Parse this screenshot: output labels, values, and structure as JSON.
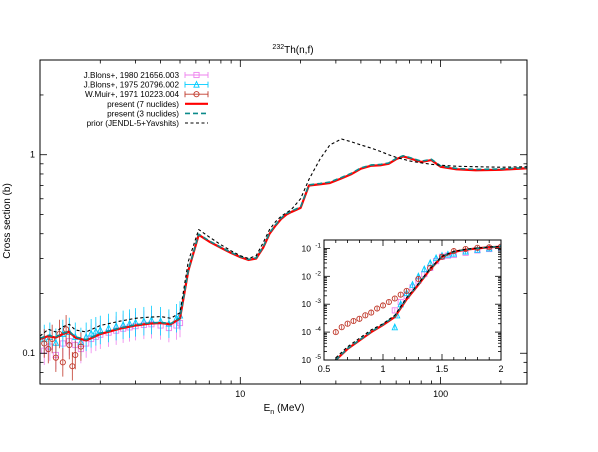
{
  "chart_data": {
    "type": "line",
    "title": "Th(n,f)",
    "title_superscript": "232",
    "xlabel": "E",
    "xlabel_subscript": "n",
    "xlabel_unit": "(MeV)",
    "ylabel": "Cross section (b)",
    "x_scale": "log",
    "y_scale": "log",
    "xlim": [
      1.0,
      270
    ],
    "ylim": [
      0.07,
      3.0
    ],
    "x_ticks": [
      {
        "value": 10,
        "label": "10"
      },
      {
        "value": 100,
        "label": "100"
      }
    ],
    "y_ticks": [
      {
        "value": 0.1,
        "label": "0.1"
      },
      {
        "value": 1,
        "label": "1"
      }
    ],
    "grid": false,
    "legend_position": "top-left",
    "series": [
      {
        "name": "J.Blons+, 1980 21656.003",
        "kind": "points",
        "marker": "square",
        "color": "#ee82ee",
        "x": [
          1.05,
          1.12,
          1.2,
          1.3,
          1.4,
          1.5,
          1.6,
          1.7,
          1.8,
          1.9,
          2.0,
          2.2,
          2.4,
          2.6,
          2.8,
          3.0,
          3.3,
          3.6,
          4.0,
          4.4,
          4.8,
          5.0
        ],
        "y": [
          0.103,
          0.108,
          0.098,
          0.112,
          0.115,
          0.11,
          0.105,
          0.112,
          0.118,
          0.121,
          0.124,
          0.127,
          0.13,
          0.133,
          0.135,
          0.137,
          0.139,
          0.14,
          0.138,
          0.134,
          0.138,
          0.142
        ]
      },
      {
        "name": "J.Blons+, 1975 20796.002",
        "kind": "points",
        "marker": "triangle",
        "color": "#00ccff",
        "x": [
          1.05,
          1.12,
          1.2,
          1.3,
          1.4,
          1.5,
          1.6,
          1.7,
          1.8,
          1.9,
          2.0,
          2.2,
          2.4,
          2.6,
          2.8,
          3.0,
          3.3,
          3.6,
          4.0,
          4.4,
          4.8,
          5.0
        ],
        "y": [
          0.118,
          0.121,
          0.113,
          0.125,
          0.128,
          0.121,
          0.114,
          0.121,
          0.126,
          0.129,
          0.131,
          0.134,
          0.137,
          0.139,
          0.141,
          0.143,
          0.145,
          0.147,
          0.145,
          0.141,
          0.15,
          0.155
        ]
      },
      {
        "name": "W.Muir+, 1971 10223.004",
        "kind": "points",
        "marker": "circle",
        "color": "#c0392b",
        "x": [
          1.05,
          1.1,
          1.15,
          1.2,
          1.25,
          1.3,
          1.35,
          1.4,
          1.45,
          1.5,
          1.6
        ],
        "y": [
          0.112,
          0.105,
          0.118,
          0.095,
          0.125,
          0.09,
          0.132,
          0.11,
          0.086,
          0.098,
          0.108
        ]
      },
      {
        "name": "present (7 nuclides)",
        "kind": "line",
        "color": "#ff0000",
        "x": [
          1.0,
          1.1,
          1.2,
          1.3,
          1.4,
          1.5,
          1.7,
          2.0,
          2.5,
          3.0,
          3.5,
          4.0,
          4.5,
          5.0,
          5.5,
          6.2,
          7.0,
          8.0,
          9.0,
          10.0,
          11.0,
          12.0,
          13.0,
          14.0,
          15.0,
          16.0,
          17.0,
          18.0,
          20.0,
          22.0,
          25.0,
          28.0,
          32.0,
          36.0,
          40.0,
          45.0,
          50.0,
          55.0,
          60.0,
          65.0,
          70.0,
          80.0,
          90.0,
          100.0,
          120.0,
          150.0,
          200.0,
          270.0
        ],
        "y": [
          0.118,
          0.122,
          0.12,
          0.125,
          0.128,
          0.12,
          0.116,
          0.125,
          0.133,
          0.138,
          0.141,
          0.142,
          0.14,
          0.15,
          0.26,
          0.395,
          0.365,
          0.34,
          0.32,
          0.305,
          0.295,
          0.3,
          0.34,
          0.4,
          0.44,
          0.475,
          0.5,
          0.515,
          0.54,
          0.7,
          0.71,
          0.72,
          0.76,
          0.8,
          0.85,
          0.88,
          0.885,
          0.9,
          0.95,
          0.98,
          0.96,
          0.92,
          0.94,
          0.87,
          0.845,
          0.835,
          0.84,
          0.855
        ]
      },
      {
        "name": "present (3 nuclides)",
        "kind": "line",
        "color": "#0b8a8a",
        "x": [
          1.0,
          1.1,
          1.2,
          1.3,
          1.4,
          1.5,
          1.7,
          2.0,
          2.5,
          3.0,
          3.5,
          4.0,
          4.5,
          5.0,
          5.5,
          6.2,
          7.0,
          8.0,
          9.0,
          10.0,
          11.0,
          12.0,
          13.0,
          14.0,
          15.0,
          16.0,
          17.0,
          18.0,
          20.0,
          22.0,
          25.0,
          28.0,
          32.0,
          36.0,
          40.0,
          45.0,
          50.0,
          55.0,
          60.0,
          65.0,
          70.0,
          80.0,
          90.0,
          100.0,
          120.0,
          150.0,
          200.0,
          270.0
        ],
        "y": [
          0.119,
          0.123,
          0.121,
          0.126,
          0.129,
          0.121,
          0.117,
          0.126,
          0.134,
          0.139,
          0.142,
          0.143,
          0.141,
          0.151,
          0.262,
          0.398,
          0.368,
          0.342,
          0.322,
          0.307,
          0.297,
          0.302,
          0.343,
          0.404,
          0.444,
          0.48,
          0.505,
          0.52,
          0.546,
          0.705,
          0.716,
          0.728,
          0.768,
          0.808,
          0.858,
          0.888,
          0.893,
          0.908,
          0.958,
          0.988,
          0.968,
          0.928,
          0.948,
          0.878,
          0.853,
          0.843,
          0.848,
          0.862
        ]
      },
      {
        "name": "prior (JENDL-5+Yavshits)",
        "kind": "line",
        "color": "#000000",
        "x": [
          1.0,
          1.1,
          1.2,
          1.3,
          1.4,
          1.5,
          1.7,
          2.0,
          2.5,
          3.0,
          3.5,
          4.0,
          4.5,
          5.0,
          5.5,
          6.2,
          7.0,
          8.0,
          9.0,
          10.0,
          11.0,
          12.0,
          13.0,
          14.0,
          15.0,
          16.0,
          17.0,
          18.0,
          20.0,
          22.0,
          25.0,
          28.0,
          32.0,
          36.0,
          40.0,
          45.0,
          50.0,
          55.0,
          60.0,
          65.0,
          70.0,
          80.0,
          90.0,
          100.0,
          120.0,
          150.0,
          200.0,
          270.0
        ],
        "y": [
          0.122,
          0.132,
          0.128,
          0.136,
          0.14,
          0.131,
          0.128,
          0.138,
          0.145,
          0.15,
          0.152,
          0.153,
          0.15,
          0.16,
          0.29,
          0.42,
          0.385,
          0.352,
          0.328,
          0.31,
          0.3,
          0.31,
          0.36,
          0.42,
          0.46,
          0.49,
          0.51,
          0.53,
          0.6,
          0.75,
          0.95,
          1.12,
          1.2,
          1.16,
          1.12,
          1.08,
          1.04,
          1.0,
          0.97,
          0.95,
          0.93,
          0.91,
          0.895,
          0.885,
          0.875,
          0.87,
          0.865,
          0.87
        ]
      }
    ],
    "inset": {
      "x_scale": "linear",
      "y_scale": "log",
      "xlim": [
        0.5,
        2.0
      ],
      "ylim": [
        1e-05,
        0.2
      ],
      "x_ticks": [
        {
          "value": 0.5,
          "label": "0.5"
        },
        {
          "value": 1,
          "label": "1"
        },
        {
          "value": 1.5,
          "label": "1.5"
        },
        {
          "value": 2,
          "label": "2"
        }
      ],
      "y_ticks": [
        {
          "value": 1e-05,
          "label": "10",
          "exp": "-5"
        },
        {
          "value": 0.0001,
          "label": "10",
          "exp": "-4"
        },
        {
          "value": 0.001,
          "label": "10",
          "exp": "-3"
        },
        {
          "value": 0.01,
          "label": "10",
          "exp": "-2"
        },
        {
          "value": 0.1,
          "label": "10",
          "exp": "-1"
        }
      ],
      "series": [
        {
          "name": "J.Blons+, 1980 21656.003",
          "kind": "points",
          "marker": "square",
          "color": "#ee82ee",
          "x": [
            1.1,
            1.15,
            1.2,
            1.25,
            1.3,
            1.35,
            1.4,
            1.45,
            1.5,
            1.55,
            1.6,
            1.7,
            1.8,
            1.9,
            2.0
          ],
          "y": [
            0.0006,
            0.0012,
            0.002,
            0.004,
            0.007,
            0.012,
            0.02,
            0.035,
            0.05,
            0.055,
            0.058,
            0.07,
            0.085,
            0.095,
            0.1
          ]
        },
        {
          "name": "J.Blons+, 1975 20796.002",
          "kind": "points",
          "marker": "triangle",
          "color": "#00ccff",
          "x": [
            1.1,
            1.12,
            1.15,
            1.2,
            1.25,
            1.3,
            1.35,
            1.4,
            1.45,
            1.5,
            1.55,
            1.6,
            1.7,
            1.8,
            1.9,
            2.0
          ],
          "y": [
            0.00015,
            0.0004,
            0.001,
            0.0025,
            0.005,
            0.01,
            0.018,
            0.03,
            0.045,
            0.055,
            0.06,
            0.065,
            0.078,
            0.09,
            0.1,
            0.11
          ]
        },
        {
          "name": "W.Muir+, 1971 10223.004",
          "kind": "points",
          "marker": "circle",
          "color": "#c0392b",
          "x": [
            0.6,
            0.65,
            0.7,
            0.75,
            0.8,
            0.85,
            0.9,
            0.95,
            1.0,
            1.05,
            1.1,
            1.15,
            1.2,
            1.3,
            1.4,
            1.5,
            1.6,
            1.7,
            1.8,
            1.9,
            2.0
          ],
          "y": [
            0.0001,
            0.00015,
            0.0002,
            0.00025,
            0.0003,
            0.0004,
            0.0005,
            0.0007,
            0.0009,
            0.0012,
            0.0016,
            0.0022,
            0.003,
            0.008,
            0.02,
            0.05,
            0.08,
            0.095,
            0.105,
            0.11,
            0.115
          ]
        },
        {
          "name": "present (7 nuclides)",
          "kind": "line",
          "color": "#ff0000",
          "x": [
            0.6,
            0.7,
            0.8,
            0.9,
            1.0,
            1.1,
            1.2,
            1.3,
            1.4,
            1.5,
            1.6,
            1.7,
            1.8,
            1.9,
            2.0
          ],
          "y": [
            1e-05,
            2.5e-05,
            5e-05,
            0.0001,
            0.00018,
            0.00035,
            0.0015,
            0.005,
            0.018,
            0.05,
            0.075,
            0.09,
            0.1,
            0.11,
            0.115
          ]
        },
        {
          "name": "present (3 nuclides)",
          "kind": "line",
          "color": "#0b8a8a",
          "x": [
            0.6,
            0.7,
            0.8,
            0.9,
            1.0,
            1.1,
            1.2,
            1.3,
            1.4,
            1.5,
            1.6,
            1.7,
            1.8,
            1.9,
            2.0
          ],
          "y": [
            1e-05,
            2.6e-05,
            5.2e-05,
            0.000104,
            0.00019,
            0.00037,
            0.0016,
            0.0052,
            0.0185,
            0.051,
            0.076,
            0.091,
            0.101,
            0.111,
            0.116
          ]
        },
        {
          "name": "prior (JENDL-5+Yavshits)",
          "kind": "line",
          "color": "#000000",
          "x": [
            0.6,
            0.7,
            0.8,
            0.9,
            1.0,
            1.1,
            1.2,
            1.3,
            1.4,
            1.5,
            1.6,
            1.7,
            1.8,
            1.9,
            2.0
          ],
          "y": [
            1.2e-05,
            3e-05,
            6e-05,
            0.00012,
            0.0002,
            0.0004,
            0.0017,
            0.0055,
            0.019,
            0.052,
            0.078,
            0.093,
            0.103,
            0.112,
            0.118
          ]
        }
      ]
    }
  }
}
